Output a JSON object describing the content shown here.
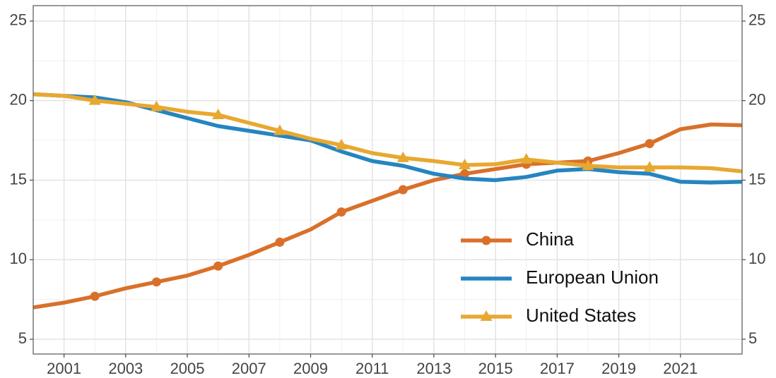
{
  "chart_data": {
    "type": "line",
    "x": [
      2000,
      2001,
      2002,
      2003,
      2004,
      2005,
      2006,
      2007,
      2008,
      2009,
      2010,
      2011,
      2012,
      2013,
      2014,
      2015,
      2016,
      2017,
      2018,
      2019,
      2020,
      2021,
      2022,
      2023
    ],
    "series": [
      {
        "name": "China",
        "color": "#d9702a",
        "marker": "circle",
        "values": [
          7.0,
          7.3,
          7.7,
          8.2,
          8.6,
          9.0,
          9.6,
          10.3,
          11.1,
          11.9,
          13.0,
          13.7,
          14.4,
          15.0,
          15.4,
          15.7,
          16.0,
          16.1,
          16.2,
          16.7,
          17.3,
          18.2,
          18.5,
          18.45
        ]
      },
      {
        "name": "European Union",
        "color": "#2585c0",
        "marker": "none",
        "values": [
          20.4,
          20.3,
          20.2,
          19.9,
          19.4,
          18.9,
          18.4,
          18.1,
          17.8,
          17.5,
          16.8,
          16.2,
          15.9,
          15.4,
          15.1,
          15.0,
          15.2,
          15.6,
          15.7,
          15.5,
          15.4,
          14.9,
          14.85,
          14.9
        ]
      },
      {
        "name": "United States",
        "color": "#e8a830",
        "marker": "triangle",
        "values": [
          20.4,
          20.3,
          20.0,
          19.8,
          19.6,
          19.3,
          19.1,
          18.6,
          18.1,
          17.6,
          17.2,
          16.7,
          16.4,
          16.2,
          15.95,
          16.0,
          16.3,
          16.1,
          15.9,
          15.8,
          15.8,
          15.8,
          15.75,
          15.55
        ]
      }
    ],
    "xlim": [
      2000,
      2023
    ],
    "xticks": [
      2001,
      2003,
      2005,
      2007,
      2009,
      2011,
      2013,
      2015,
      2017,
      2019,
      2021
    ],
    "ylim": [
      4.07,
      25.97
    ],
    "yticks": [
      5,
      10,
      15,
      20,
      25
    ],
    "y2lim": [
      4.07,
      25.97
    ],
    "y2ticks": [
      5,
      10,
      15,
      20,
      25
    ],
    "grid": true,
    "legend": "lower-right"
  }
}
